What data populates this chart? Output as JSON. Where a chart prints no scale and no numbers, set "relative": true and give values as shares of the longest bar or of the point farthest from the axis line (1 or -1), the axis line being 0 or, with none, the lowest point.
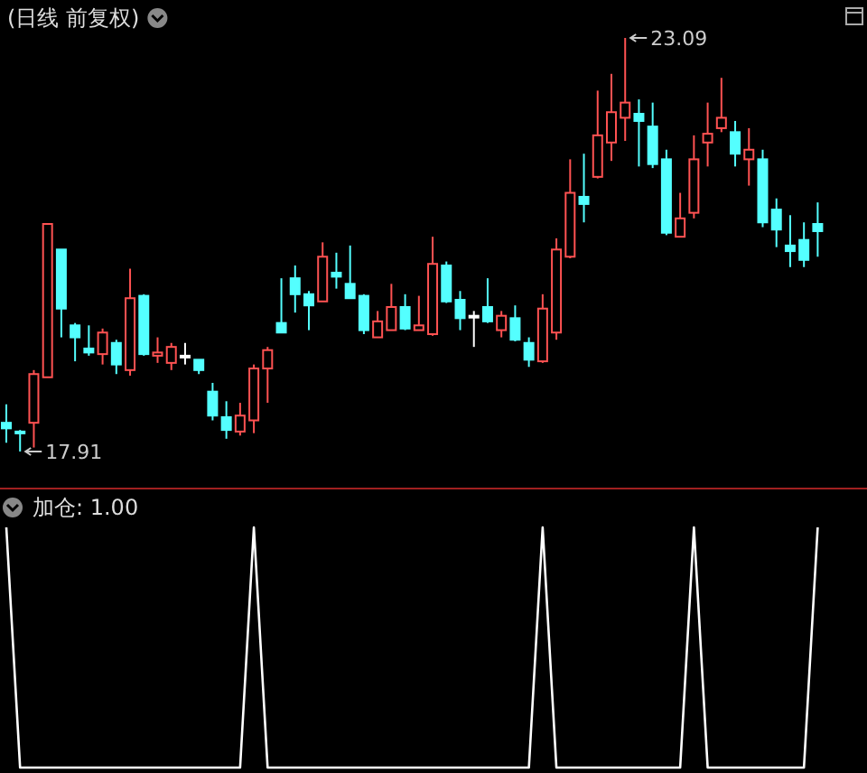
{
  "chart_data": [
    {
      "type": "candlestick",
      "title": "(日线 前复权)",
      "categories": [
        null,
        null,
        null,
        null,
        null,
        null,
        null,
        null,
        null,
        null,
        null,
        null,
        null,
        null,
        null,
        null,
        null,
        null,
        null,
        null,
        null,
        null,
        null,
        null,
        null,
        null,
        null,
        null,
        null,
        null,
        null,
        null,
        null,
        null,
        null,
        null,
        null,
        null,
        null,
        null,
        null,
        null,
        null,
        null,
        null,
        null,
        null,
        null,
        null,
        null,
        null,
        null,
        null,
        null,
        null,
        null,
        null,
        null,
        null,
        null
      ],
      "ohlc": [
        [
          18.27,
          18.5,
          18.02,
          18.2
        ],
        [
          18.16,
          18.18,
          17.91,
          18.14
        ],
        [
          18.27,
          18.93,
          17.96,
          18.88
        ],
        [
          18.84,
          20.76,
          18.84,
          20.76
        ],
        [
          20.44,
          20.44,
          19.34,
          19.7
        ],
        [
          19.49,
          19.52,
          19.04,
          19.34
        ],
        [
          19.2,
          19.49,
          19.11,
          19.15
        ],
        [
          19.13,
          19.45,
          19.0,
          19.4
        ],
        [
          19.27,
          19.31,
          18.88,
          19.0
        ],
        [
          18.93,
          20.2,
          18.86,
          19.83
        ],
        [
          19.86,
          19.88,
          19.11,
          19.13
        ],
        [
          19.11,
          19.34,
          19.02,
          19.15
        ],
        [
          19.02,
          19.27,
          18.93,
          19.22
        ],
        [
          19.11,
          19.27,
          19.0,
          19.11
        ],
        [
          19.06,
          19.06,
          18.88,
          18.93
        ],
        [
          18.66,
          18.77,
          18.3,
          18.36
        ],
        [
          18.34,
          18.54,
          18.07,
          18.18
        ],
        [
          18.16,
          18.52,
          18.11,
          18.36
        ],
        [
          18.3,
          19.0,
          18.14,
          18.95
        ],
        [
          18.95,
          19.22,
          18.52,
          19.18
        ],
        [
          19.52,
          20.08,
          19.4,
          19.4
        ],
        [
          20.08,
          20.24,
          19.65,
          19.88
        ],
        [
          19.88,
          19.92,
          19.43,
          19.74
        ],
        [
          19.79,
          20.53,
          19.79,
          20.35
        ],
        [
          20.15,
          20.4,
          19.95,
          20.1
        ],
        [
          20.01,
          20.49,
          19.83,
          19.83
        ],
        [
          19.86,
          19.88,
          19.38,
          19.43
        ],
        [
          19.34,
          19.67,
          19.34,
          19.54
        ],
        [
          19.43,
          20.01,
          19.43,
          19.72
        ],
        [
          19.72,
          19.88,
          19.43,
          19.45
        ],
        [
          19.43,
          19.86,
          19.43,
          19.49
        ],
        [
          19.38,
          20.6,
          19.36,
          20.26
        ],
        [
          20.24,
          20.29,
          19.77,
          19.79
        ],
        [
          19.81,
          19.92,
          19.43,
          19.58
        ],
        [
          19.61,
          19.67,
          19.22,
          19.61
        ],
        [
          19.72,
          20.08,
          19.52,
          19.54
        ],
        [
          19.43,
          19.67,
          19.34,
          19.61
        ],
        [
          19.58,
          19.74,
          19.29,
          19.31
        ],
        [
          19.27,
          19.34,
          18.97,
          19.06
        ],
        [
          19.04,
          19.88,
          19.02,
          19.7
        ],
        [
          19.4,
          20.58,
          19.31,
          20.44
        ],
        [
          20.35,
          21.57,
          20.33,
          21.15
        ],
        [
          21.1,
          21.64,
          20.78,
          21.01
        ],
        [
          21.35,
          22.43,
          21.33,
          21.87
        ],
        [
          21.78,
          22.64,
          21.55,
          22.16
        ],
        [
          22.09,
          23.09,
          21.8,
          22.28
        ],
        [
          22.14,
          22.32,
          21.48,
          22.05
        ],
        [
          21.98,
          22.28,
          21.46,
          21.51
        ],
        [
          21.57,
          21.69,
          20.62,
          20.65
        ],
        [
          20.6,
          21.15,
          20.6,
          20.83
        ],
        [
          20.9,
          21.87,
          20.83,
          21.57
        ],
        [
          21.78,
          22.28,
          21.48,
          21.89
        ],
        [
          21.96,
          22.59,
          21.91,
          22.09
        ],
        [
          21.91,
          22.05,
          21.48,
          21.64
        ],
        [
          21.57,
          21.96,
          21.24,
          21.69
        ],
        [
          21.57,
          21.69,
          20.72,
          20.78
        ],
        [
          20.94,
          21.08,
          20.47,
          20.69
        ],
        [
          20.49,
          20.87,
          20.22,
          20.42
        ],
        [
          20.56,
          20.78,
          20.22,
          20.31
        ],
        [
          20.76,
          21.03,
          20.35,
          20.67
        ]
      ],
      "colors": [
        "#54ffff",
        "#54ffff",
        "#ff5252",
        "#ff5252",
        "#54ffff",
        "#54ffff",
        "#54ffff",
        "#ff5252",
        "#54ffff",
        "#ff5252",
        "#54ffff",
        "#ff5252",
        "#ff5252",
        "#ffffff",
        "#54ffff",
        "#54ffff",
        "#54ffff",
        "#ff5252",
        "#ff5252",
        "#ff5252",
        "#54ffff",
        "#54ffff",
        "#54ffff",
        "#ff5252",
        "#54ffff",
        "#54ffff",
        "#54ffff",
        "#ff5252",
        "#ff5252",
        "#54ffff",
        "#ff5252",
        "#ff5252",
        "#54ffff",
        "#54ffff",
        "#ffffff",
        "#54ffff",
        "#ff5252",
        "#54ffff",
        "#54ffff",
        "#ff5252",
        "#ff5252",
        "#ff5252",
        "#54ffff",
        "#ff5252",
        "#ff5252",
        "#ff5252",
        "#54ffff",
        "#54ffff",
        "#54ffff",
        "#ff5252",
        "#ff5252",
        "#ff5252",
        "#ff5252",
        "#54ffff",
        "#ff5252",
        "#54ffff",
        "#54ffff",
        "#54ffff",
        "#54ffff",
        "#54ffff"
      ],
      "annotations": [
        "23.09",
        "17.91"
      ]
    },
    {
      "type": "line",
      "title": "加仓: 1.00",
      "relative": true,
      "categories": [
        null,
        null,
        null,
        null,
        null,
        null,
        null,
        null,
        null,
        null,
        null,
        null,
        null,
        null,
        null,
        null,
        null,
        null,
        null,
        null,
        null,
        null,
        null,
        null,
        null,
        null,
        null,
        null,
        null,
        null,
        null,
        null,
        null,
        null,
        null,
        null,
        null,
        null,
        null,
        null,
        null,
        null,
        null,
        null,
        null,
        null,
        null,
        null,
        null,
        null,
        null,
        null,
        null,
        null,
        null,
        null,
        null,
        null,
        null,
        null
      ],
      "series": [
        {
          "color": "#ffffff",
          "values": [
            1,
            0,
            0,
            0,
            0,
            0,
            0,
            0,
            0,
            0,
            0,
            0,
            0,
            0,
            0,
            0,
            0,
            0,
            1,
            0,
            0,
            0,
            0,
            0,
            0,
            0,
            0,
            0,
            0,
            0,
            0,
            0,
            0,
            0,
            0,
            0,
            0,
            0,
            0,
            1,
            0,
            0,
            0,
            0,
            0,
            0,
            0,
            0,
            0,
            0,
            1,
            0,
            0,
            0,
            0,
            0,
            0,
            0,
            0,
            1
          ]
        }
      ]
    }
  ]
}
